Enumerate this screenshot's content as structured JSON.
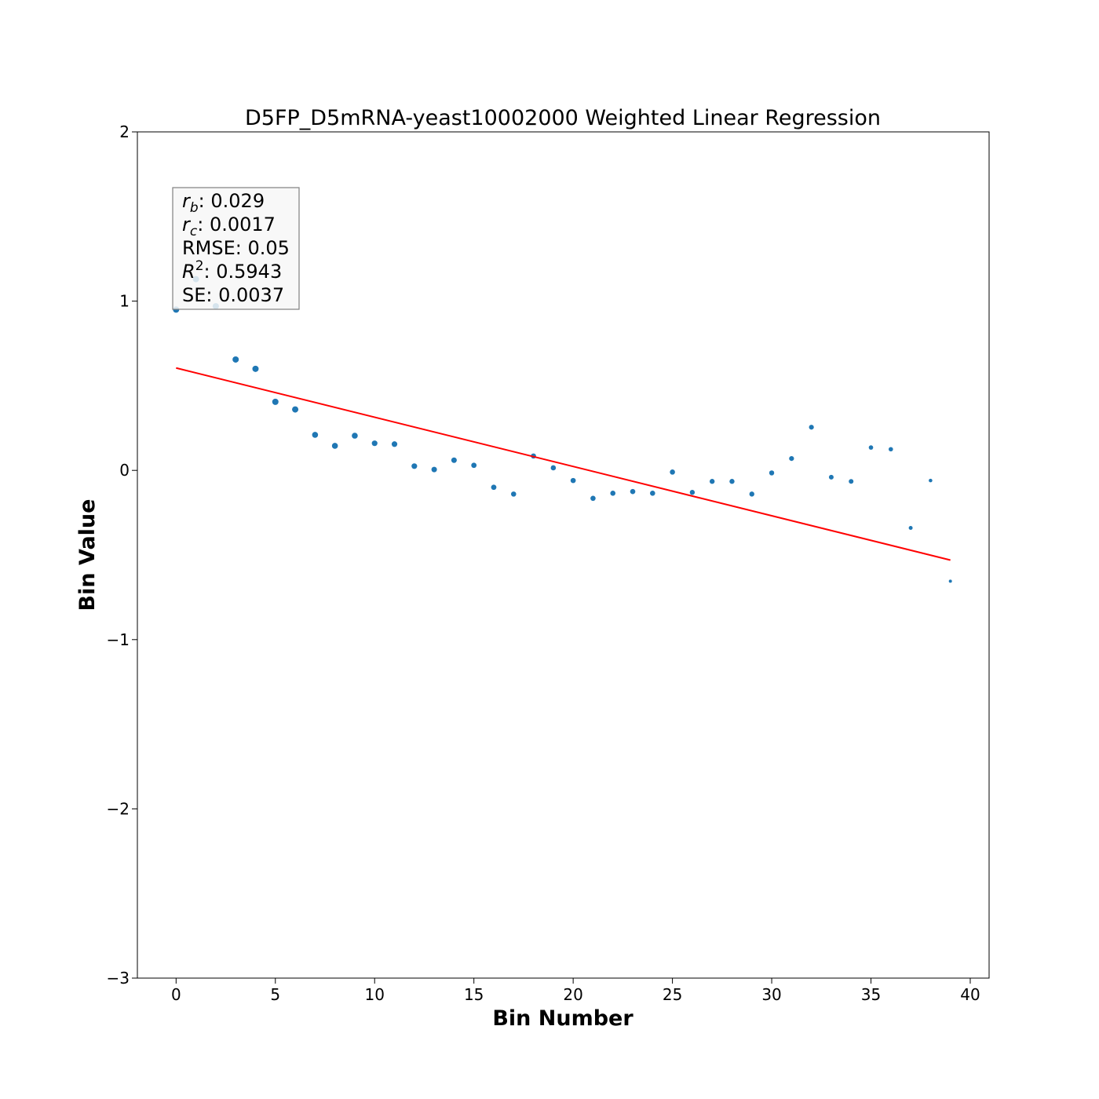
{
  "chart_data": {
    "type": "scatter",
    "title": "D5FP_D5mRNA-yeast10002000 Weighted Linear Regression",
    "xlabel": "Bin Number",
    "ylabel": "Bin Value",
    "xlim": [
      -1.95,
      40.95
    ],
    "ylim": [
      -3,
      2
    ],
    "xticks": [
      0,
      5,
      10,
      15,
      20,
      25,
      30,
      35,
      40
    ],
    "xtick_labels": [
      "0",
      "5",
      "10",
      "15",
      "20",
      "25",
      "30",
      "35",
      "40"
    ],
    "yticks": [
      -3,
      -2,
      -1,
      0,
      1,
      2
    ],
    "ytick_labels": [
      "−3",
      "−2",
      "−1",
      "0",
      "1",
      "2"
    ],
    "grid": false,
    "point_color": "#1f77b4",
    "line_color": "#ff0000",
    "points": {
      "x": [
        0,
        1,
        2,
        3,
        4,
        5,
        6,
        7,
        8,
        9,
        10,
        11,
        12,
        13,
        14,
        15,
        16,
        17,
        18,
        19,
        20,
        21,
        22,
        23,
        24,
        25,
        26,
        27,
        28,
        29,
        30,
        31,
        32,
        33,
        34,
        35,
        36,
        37,
        38,
        39
      ],
      "y": [
        0.95,
        1.13,
        0.97,
        0.655,
        0.6,
        0.405,
        0.36,
        0.21,
        0.145,
        0.205,
        0.16,
        0.155,
        0.025,
        0.005,
        0.06,
        0.03,
        -0.1,
        -0.14,
        0.085,
        0.015,
        -0.06,
        -0.165,
        -0.135,
        -0.125,
        -0.135,
        -0.01,
        -0.13,
        -0.065,
        -0.065,
        -0.14,
        -0.015,
        0.07,
        0.255,
        -0.04,
        -0.065,
        0.135,
        0.125,
        -0.34,
        -0.06,
        -0.655
      ],
      "sizes": [
        4,
        4,
        4,
        4,
        4,
        4,
        4,
        3.8,
        3.8,
        3.8,
        3.6,
        3.6,
        3.6,
        3.5,
        3.5,
        3.4,
        3.4,
        3.3,
        3.3,
        3.3,
        3.3,
        3.3,
        3.3,
        3.3,
        3.3,
        3.3,
        3.2,
        3.2,
        3.2,
        3.2,
        3.2,
        3.1,
        3.1,
        3,
        3,
        2.8,
        2.8,
        2.5,
        2.3,
        2
      ]
    },
    "regression_line": {
      "x": [
        0,
        39
      ],
      "y": [
        0.605,
        -0.53
      ]
    },
    "stats": {
      "position": "top-left",
      "lines": [
        {
          "sym": "r",
          "sub": "b",
          "sup": "",
          "rest": ": 0.029"
        },
        {
          "sym": "r",
          "sub": "c",
          "sup": "",
          "rest": ": 0.0017"
        },
        {
          "sym": "",
          "sub": "",
          "sup": "",
          "rest": "RMSE: 0.05"
        },
        {
          "sym": "R",
          "sub": "",
          "sup": "2",
          "rest": ": 0.5943"
        },
        {
          "sym": "",
          "sub": "",
          "sup": "",
          "rest": "SE: 0.0037"
        }
      ]
    }
  }
}
